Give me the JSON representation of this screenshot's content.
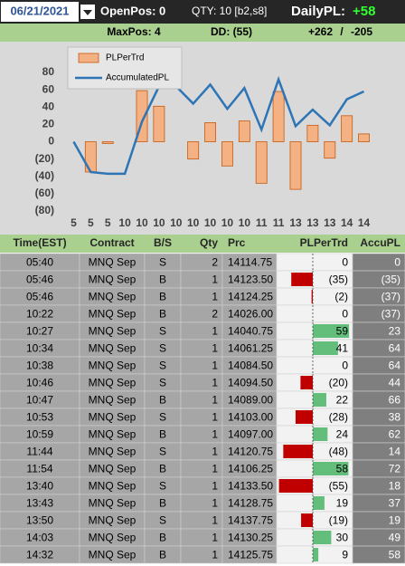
{
  "header": {
    "date": "06/21/2021",
    "open_pos": "OpenPos: 0",
    "qty": "QTY: 10 [b2,s8]",
    "daily_pl_label": "DailyPL:",
    "daily_pl": "+58",
    "max_pos": "MaxPos: 4",
    "dd": "DD: (55)",
    "gain": "+262",
    "sep": "/",
    "loss": "-205"
  },
  "chart_data": {
    "type": "combo",
    "categories": [
      "5",
      "5",
      "5",
      "10",
      "10",
      "10",
      "10",
      "10",
      "10",
      "10",
      "10",
      "11",
      "11",
      "13",
      "13",
      "13",
      "14",
      "14"
    ],
    "series": [
      {
        "name": "PLPerTrd",
        "type": "bar",
        "color": "#f4b183",
        "values": [
          0,
          -35,
          -2,
          0,
          59,
          41,
          0,
          -20,
          22,
          -28,
          24,
          -48,
          58,
          -55,
          19,
          -19,
          30,
          9
        ]
      },
      {
        "name": "AccumulatedPL",
        "type": "line",
        "color": "#2e75b6",
        "values": [
          0,
          -35,
          -37,
          -37,
          23,
          64,
          64,
          44,
          66,
          38,
          62,
          14,
          72,
          18,
          37,
          19,
          49,
          58
        ]
      }
    ],
    "ylim": [
      -80,
      80
    ],
    "yticks": [
      {
        "value": -80,
        "label": "(80)"
      },
      {
        "value": -60,
        "label": "(60)"
      },
      {
        "value": -40,
        "label": "(40)"
      },
      {
        "value": -20,
        "label": "(20)"
      },
      0,
      20,
      40,
      60,
      80
    ],
    "grid": false,
    "legend": "top-left"
  },
  "table": {
    "columns": [
      "Time(EST)",
      "Contract",
      "B/S",
      "Qty",
      "Prc",
      "PLPerTrd",
      "AccuPL"
    ],
    "rows": [
      [
        "05:40",
        "MNQ Sep",
        "S",
        "2",
        "14114.75",
        "0",
        "0"
      ],
      [
        "05:46",
        "MNQ Sep",
        "B",
        "1",
        "14123.50",
        "(35)",
        "(35)"
      ],
      [
        "05:46",
        "MNQ Sep",
        "B",
        "1",
        "14124.25",
        "(2)",
        "(37)"
      ],
      [
        "10:22",
        "MNQ Sep",
        "B",
        "2",
        "14026.00",
        "0",
        "(37)"
      ],
      [
        "10:27",
        "MNQ Sep",
        "S",
        "1",
        "14040.75",
        "59",
        "23"
      ],
      [
        "10:34",
        "MNQ Sep",
        "S",
        "1",
        "14061.25",
        "41",
        "64"
      ],
      [
        "10:38",
        "MNQ Sep",
        "S",
        "1",
        "14084.50",
        "0",
        "64"
      ],
      [
        "10:46",
        "MNQ Sep",
        "S",
        "1",
        "14094.50",
        "(20)",
        "44"
      ],
      [
        "10:47",
        "MNQ Sep",
        "B",
        "1",
        "14089.00",
        "22",
        "66"
      ],
      [
        "10:53",
        "MNQ Sep",
        "S",
        "1",
        "14103.00",
        "(28)",
        "38"
      ],
      [
        "10:59",
        "MNQ Sep",
        "B",
        "1",
        "14097.00",
        "24",
        "62"
      ],
      [
        "11:44",
        "MNQ Sep",
        "S",
        "1",
        "14120.75",
        "(48)",
        "14"
      ],
      [
        "11:54",
        "MNQ Sep",
        "B",
        "1",
        "14106.25",
        "58",
        "72"
      ],
      [
        "13:40",
        "MNQ Sep",
        "S",
        "1",
        "14133.50",
        "(55)",
        "18"
      ],
      [
        "13:43",
        "MNQ Sep",
        "B",
        "1",
        "14128.75",
        "19",
        "37"
      ],
      [
        "13:50",
        "MNQ Sep",
        "S",
        "1",
        "14137.75",
        "(19)",
        "19"
      ],
      [
        "14:03",
        "MNQ Sep",
        "B",
        "1",
        "14130.25",
        "30",
        "49"
      ],
      [
        "14:32",
        "MNQ Sep",
        "B",
        "1",
        "14125.75",
        "9",
        "58"
      ]
    ]
  }
}
